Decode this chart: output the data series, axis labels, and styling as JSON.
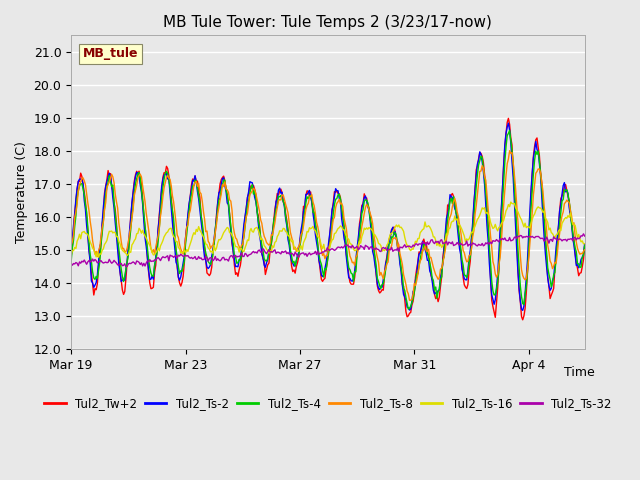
{
  "title": "MB Tule Tower: Tule Temps 2 (3/23/17-now)",
  "xlabel": "Time",
  "ylabel": "Temperature (C)",
  "ylim": [
    12.0,
    21.5
  ],
  "yticks": [
    12.0,
    13.0,
    14.0,
    15.0,
    16.0,
    17.0,
    18.0,
    19.0,
    20.0,
    21.0
  ],
  "bg_color": "#e8e8e8",
  "grid_color": "#ffffff",
  "series": [
    {
      "label": "Tul2_Tw+2",
      "color": "#ff0000"
    },
    {
      "label": "Tul2_Ts-2",
      "color": "#0000ff"
    },
    {
      "label": "Tul2_Ts-4",
      "color": "#00cc00"
    },
    {
      "label": "Tul2_Ts-8",
      "color": "#ff8800"
    },
    {
      "label": "Tul2_Ts-16",
      "color": "#dddd00"
    },
    {
      "label": "Tul2_Ts-32",
      "color": "#aa00aa"
    }
  ],
  "legend_label": "MB_tule",
  "legend_label_color": "#880000",
  "legend_label_bg": "#ffffcc",
  "x_tick_labels": [
    "Mar 19",
    "Mar 23",
    "Mar 27",
    "Mar 31",
    "Apr 4"
  ],
  "figsize": [
    6.4,
    4.8
  ],
  "dpi": 100
}
